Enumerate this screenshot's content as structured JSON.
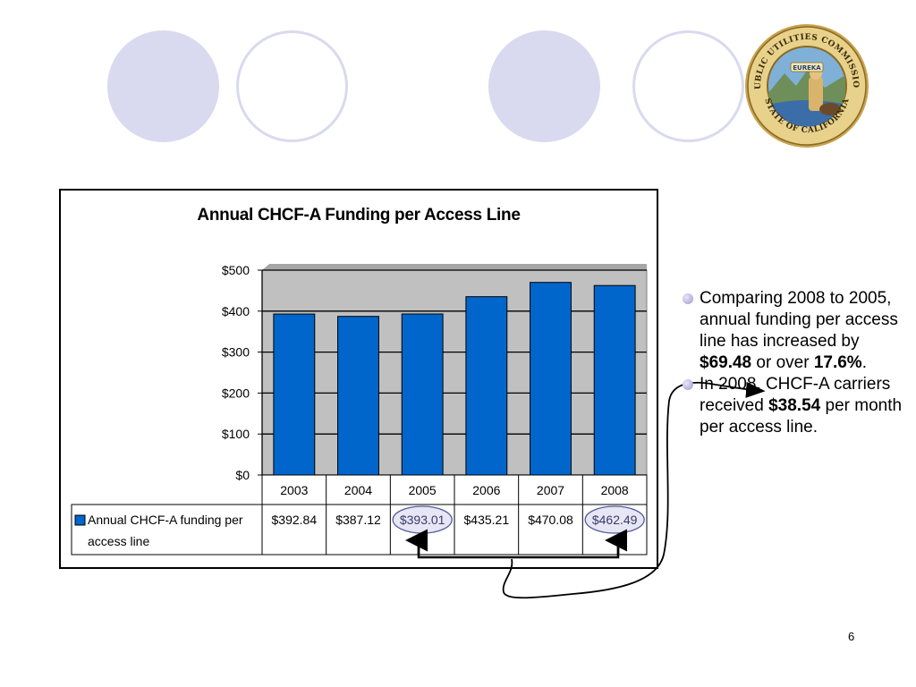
{
  "slide": {
    "page_number": "6",
    "accent_color": "#d9d9ef",
    "bar_color": "#0066cc",
    "seal": {
      "icon": "state-seal-icon",
      "text_top": "PUBLIC UTILITIES COMMISSION",
      "text_bottom": "STATE OF CALIFORNIA",
      "motto": "EUREKA"
    },
    "bullets": [
      {
        "parts": [
          {
            "text": "Comparing 2008 to 2005, annual funding per access line has increased by ",
            "bold": false
          },
          {
            "text": "$69.48",
            "bold": true
          },
          {
            "text": " or over ",
            "bold": false
          },
          {
            "text": "17.6%",
            "bold": true
          },
          {
            "text": ".",
            "bold": false
          }
        ]
      },
      {
        "parts": [
          {
            "text": "In 2008, CHCF-A carriers received ",
            "bold": false
          },
          {
            "text": "$38.54",
            "bold": true
          },
          {
            "text": " per month per access line.",
            "bold": false
          }
        ]
      }
    ]
  },
  "chart_data": {
    "type": "bar",
    "title": "Annual CHCF-A Funding per Access Line",
    "categories": [
      "2003",
      "2004",
      "2005",
      "2006",
      "2007",
      "2008"
    ],
    "series": [
      {
        "name": "Annual CHCF-A funding per access line",
        "values": [
          392.84,
          387.12,
          393.01,
          435.21,
          470.08,
          462.49
        ],
        "labels": [
          "$392.84",
          "$387.12",
          "$393.01",
          "$435.21",
          "$470.08",
          "$462.49"
        ]
      }
    ],
    "y_ticks": [
      "$0",
      "$100",
      "$200",
      "$300",
      "$400",
      "$500"
    ],
    "ylim": [
      0,
      500
    ],
    "grid": true,
    "plot_background": "#c0c0c0",
    "data_table": true,
    "highlighted_categories": [
      "2005",
      "2008"
    ]
  }
}
